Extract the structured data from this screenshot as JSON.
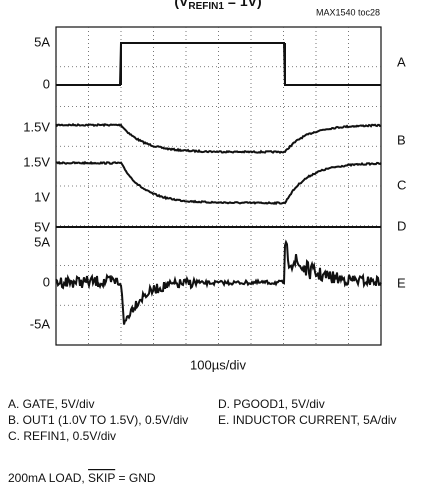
{
  "header": {
    "title_prefix": "(V",
    "title_sub": "REFIN1",
    "title_suffix": " = 1V)",
    "code": "MAX1540 toc28"
  },
  "left_labels": [
    "5A",
    "0",
    "1.5V",
    "1.5V",
    "1V",
    "5V",
    "5A",
    "0",
    "-5A"
  ],
  "right_labels": [
    "A",
    "B",
    "C",
    "D",
    "E"
  ],
  "x_label": "100µs/div",
  "notes": [
    "A. GATE, 5V/div",
    "B. OUT1 (1.0V TO 1.5V), 0.5V/div",
    "C. REFIN1, 0.5V/div",
    "D. PGOOD1, 5V/div",
    "E. INDUCTOR CURRENT, 5A/div"
  ],
  "footer": {
    "prefix": "200mA LOAD, ",
    "overlined": "SKIP",
    "suffix": " = GND"
  }
}
